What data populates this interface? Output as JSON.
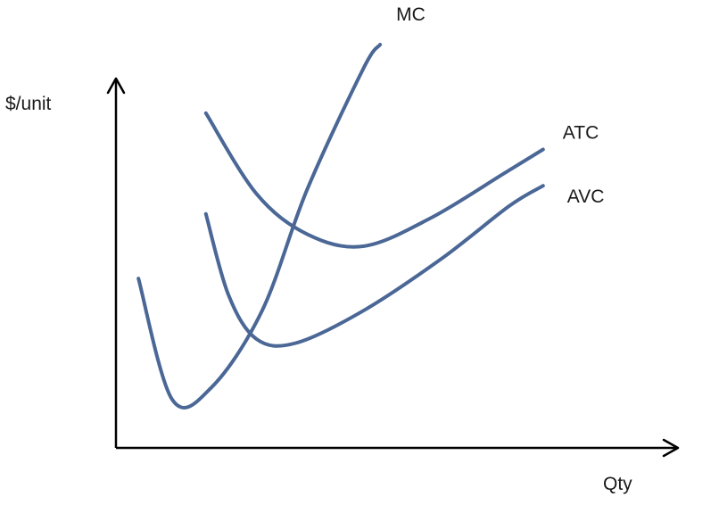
{
  "chart_data": {
    "type": "line",
    "title": "",
    "xlabel": "Qty",
    "ylabel": "$/unit",
    "grid": false,
    "legend": "none",
    "line_color": "#4a6796",
    "axis_color": "#000000",
    "xlim": [
      0,
      100
    ],
    "ylim": [
      0,
      100
    ],
    "series": [
      {
        "name": "MC",
        "points": [
          [
            4,
            42
          ],
          [
            10,
            12
          ],
          [
            17,
            15
          ],
          [
            26,
            34
          ],
          [
            34,
            64
          ],
          [
            44,
            94
          ],
          [
            47,
            100
          ]
        ]
      },
      {
        "name": "ATC",
        "points": [
          [
            16,
            83
          ],
          [
            25,
            63
          ],
          [
            34,
            53
          ],
          [
            44,
            50
          ],
          [
            56,
            57
          ],
          [
            69,
            68
          ],
          [
            76,
            74
          ]
        ]
      },
      {
        "name": "AVC",
        "points": [
          [
            16,
            58
          ],
          [
            20,
            38
          ],
          [
            25,
            27
          ],
          [
            32,
            26
          ],
          [
            44,
            34
          ],
          [
            58,
            47
          ],
          [
            70,
            60
          ],
          [
            76,
            65
          ]
        ]
      }
    ]
  }
}
